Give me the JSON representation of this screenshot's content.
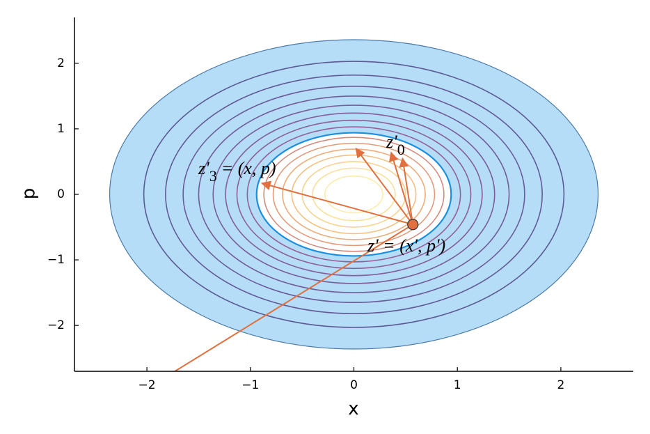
{
  "chart_data": {
    "type": "contour",
    "xlabel": "x",
    "ylabel": "p",
    "xlim": [
      -2.7,
      2.7
    ],
    "ylim": [
      -2.7,
      2.7
    ],
    "xticks": [
      {
        "value": -2,
        "label": "−2"
      },
      {
        "value": -1,
        "label": "−1"
      },
      0,
      1,
      2
    ],
    "yticks": [
      {
        "value": -2,
        "label": "−2"
      },
      {
        "value": -1,
        "label": "−1"
      },
      0,
      1,
      2
    ],
    "fill_region": {
      "outer_radius": 2.36,
      "inner_radius": 0.94,
      "color": "#b5ddf8",
      "edge_color": "#1a8fe0"
    },
    "contours": {
      "radii": [
        2.03,
        1.82,
        1.65,
        1.5,
        1.36,
        1.24,
        1.13,
        1.03,
        0.87,
        0.78,
        0.69,
        0.6,
        0.5,
        0.4,
        0.28
      ],
      "colors": [
        "#5b5a93",
        "#625a95",
        "#6a5b97",
        "#725c98",
        "#7a5d99",
        "#835e99",
        "#8c5f98",
        "#955f96",
        "#d38a7c",
        "#e39a78",
        "#eeac7a",
        "#f4c084",
        "#f8d28f",
        "#fbe09b",
        "#fcecaa"
      ]
    },
    "point": {
      "x": 0.57,
      "y": -0.46,
      "color": "#e0703f"
    },
    "arrows": [
      {
        "x": 0.02,
        "y": 0.7
      },
      {
        "x": 0.36,
        "y": 0.64
      },
      {
        "x": 0.47,
        "y": 0.55
      },
      {
        "x": -0.89,
        "y": 0.17
      }
    ],
    "line_end": {
      "x": -1.73,
      "y": -2.7
    },
    "annotations": [
      {
        "text": "z'",
        "sub": "3",
        "rest": "= (x, p)"
      },
      {
        "text": "z'",
        "sub": "0"
      },
      {
        "text": "z' = (x', p')"
      }
    ]
  }
}
